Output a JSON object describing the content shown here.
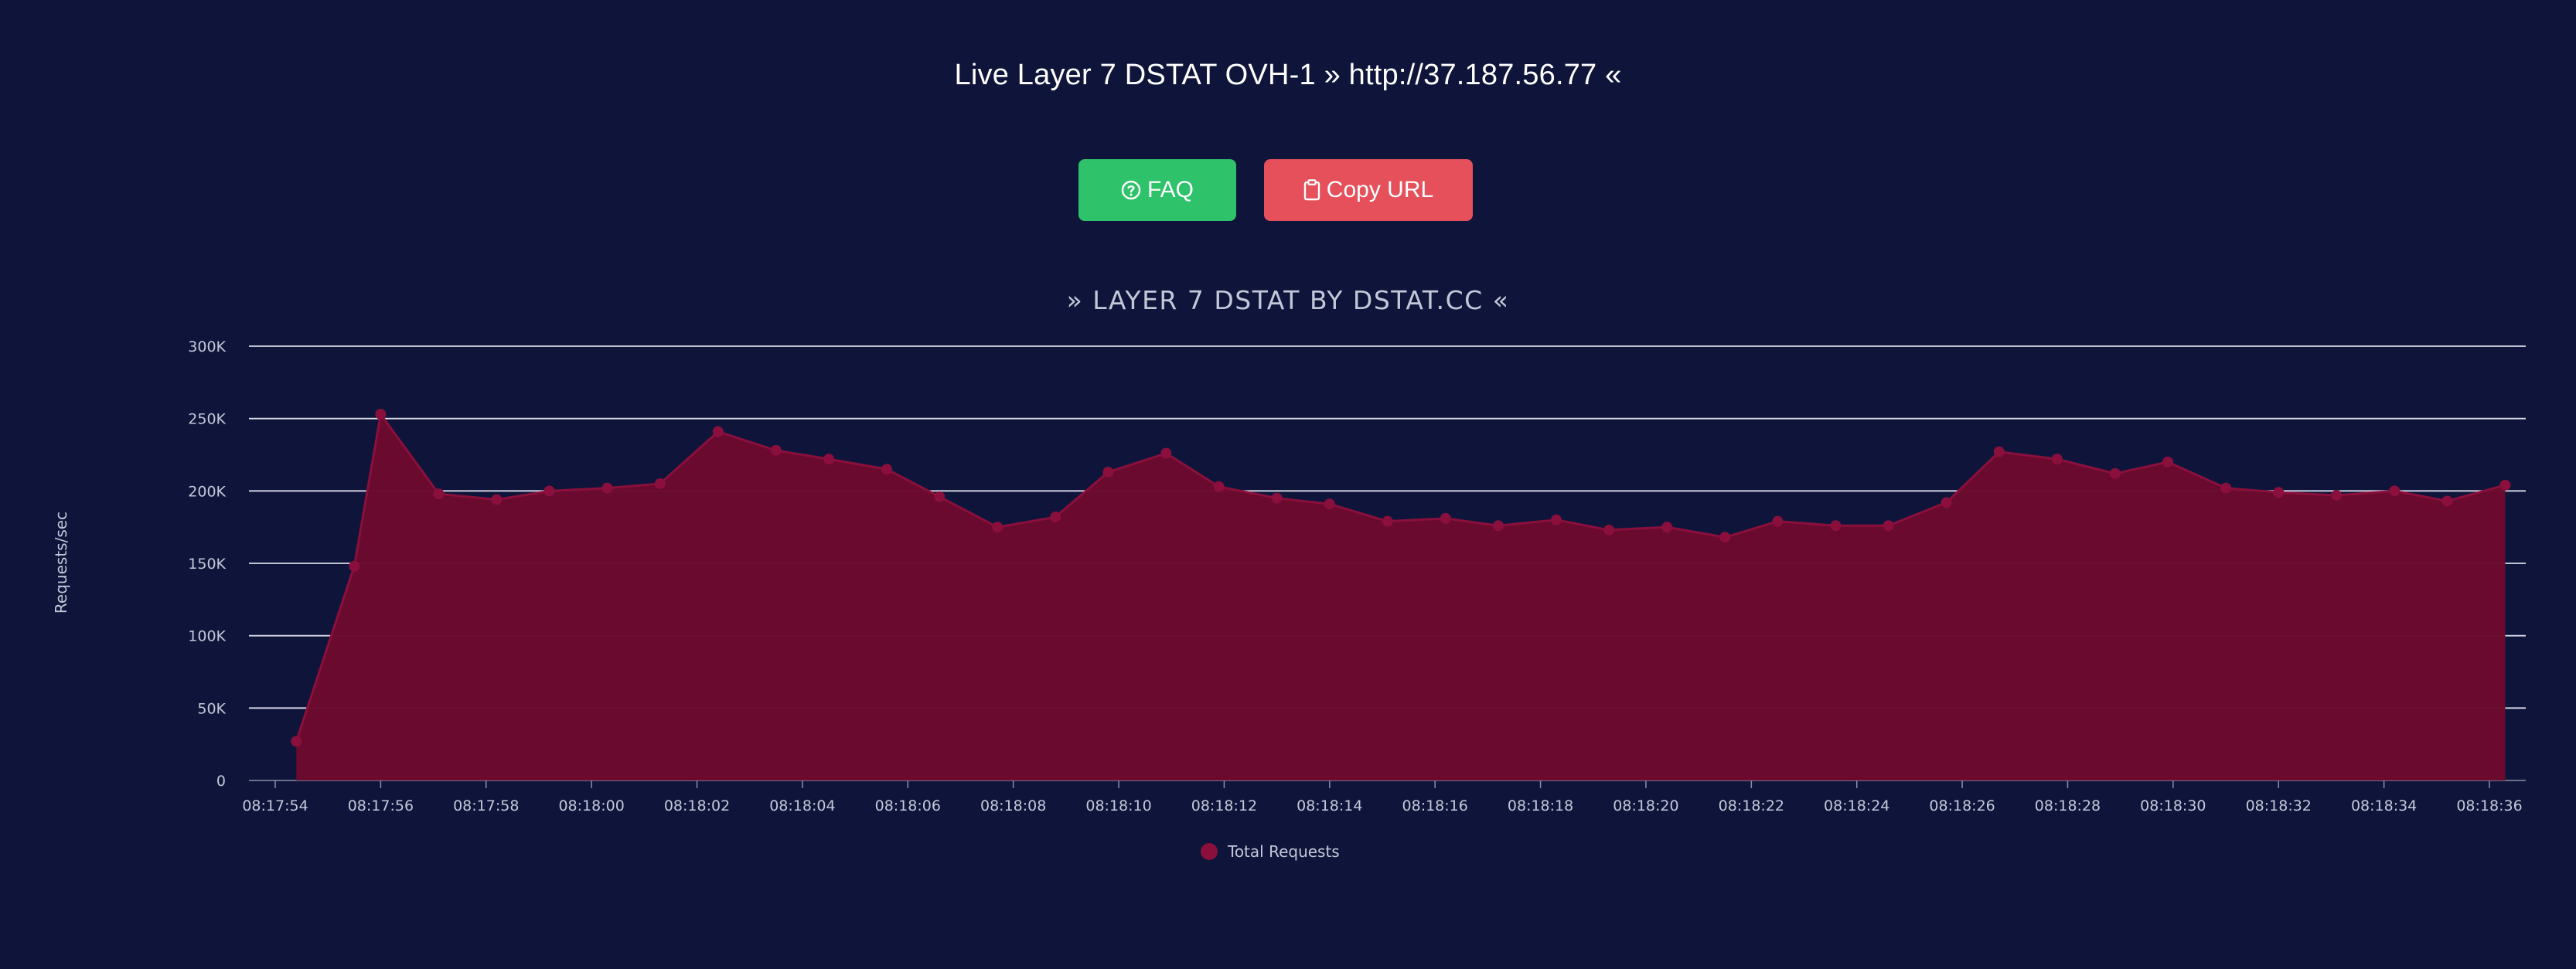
{
  "page": {
    "title": "Live Layer 7 DSTAT OVH-1 » http://37.187.56.77 «"
  },
  "buttons": {
    "faq_label": "FAQ",
    "faq_icon": "question-circle-icon",
    "copy_label": "Copy URL",
    "copy_icon": "clipboard-icon"
  },
  "colors": {
    "background": "#0f153a",
    "faq_button": "#2ec26a",
    "copy_button": "#e6505a",
    "series_fill": "#6b0a2e",
    "series_line": "#8a0f3c"
  },
  "chart_data": {
    "type": "area",
    "title": "» LAYER 7 DSTAT BY DSTAT.CC «",
    "ylabel": "Requests/sec",
    "xlabel": "",
    "ylim": [
      0,
      300000
    ],
    "yticks": [
      0,
      50000,
      100000,
      150000,
      200000,
      250000,
      300000
    ],
    "ytick_labels": [
      "0",
      "50K",
      "100K",
      "150K",
      "200K",
      "250K",
      "300K"
    ],
    "xtick_labels": [
      "08:17:54",
      "08:17:56",
      "08:17:58",
      "08:18:00",
      "08:18:02",
      "08:18:04",
      "08:18:06",
      "08:18:08",
      "08:18:10",
      "08:18:12",
      "08:18:14",
      "08:18:16",
      "08:18:18",
      "08:18:20",
      "08:18:22",
      "08:18:24",
      "08:18:26",
      "08:18:28",
      "08:18:30",
      "08:18:32",
      "08:18:34",
      "08:18:36"
    ],
    "grid": true,
    "legend_position": "bottom",
    "series": [
      {
        "name": "Total Requests",
        "x": [
          "08:17:54.4",
          "08:17:55.5",
          "08:17:56.0",
          "08:17:57.1",
          "08:17:58.2",
          "08:17:59.2",
          "08:18:00.3",
          "08:18:01.3",
          "08:18:02.4",
          "08:18:03.5",
          "08:18:04.5",
          "08:18:05.6",
          "08:18:06.6",
          "08:18:07.7",
          "08:18:08.8",
          "08:18:09.8",
          "08:18:10.9",
          "08:18:11.9",
          "08:18:13.0",
          "08:18:14.0",
          "08:18:15.1",
          "08:18:16.2",
          "08:18:17.2",
          "08:18:18.3",
          "08:18:19.3",
          "08:18:20.4",
          "08:18:21.5",
          "08:18:22.5",
          "08:18:23.6",
          "08:18:24.6",
          "08:18:25.7",
          "08:18:26.7",
          "08:18:27.8",
          "08:18:28.9",
          "08:18:29.9",
          "08:18:31.0",
          "08:18:32.0",
          "08:18:33.1",
          "08:18:34.2",
          "08:18:35.2",
          "08:18:36.3"
        ],
        "values": [
          27000,
          148000,
          253000,
          198000,
          194000,
          200000,
          202000,
          205000,
          241000,
          228000,
          222000,
          215000,
          196000,
          175000,
          182000,
          213000,
          226000,
          203000,
          195000,
          191000,
          179000,
          181000,
          176000,
          180000,
          173000,
          175000,
          168000,
          179000,
          176000,
          176000,
          192000,
          227000,
          222000,
          212000,
          220000,
          202000,
          199000,
          197000,
          200000,
          193000,
          204000
        ]
      }
    ]
  }
}
